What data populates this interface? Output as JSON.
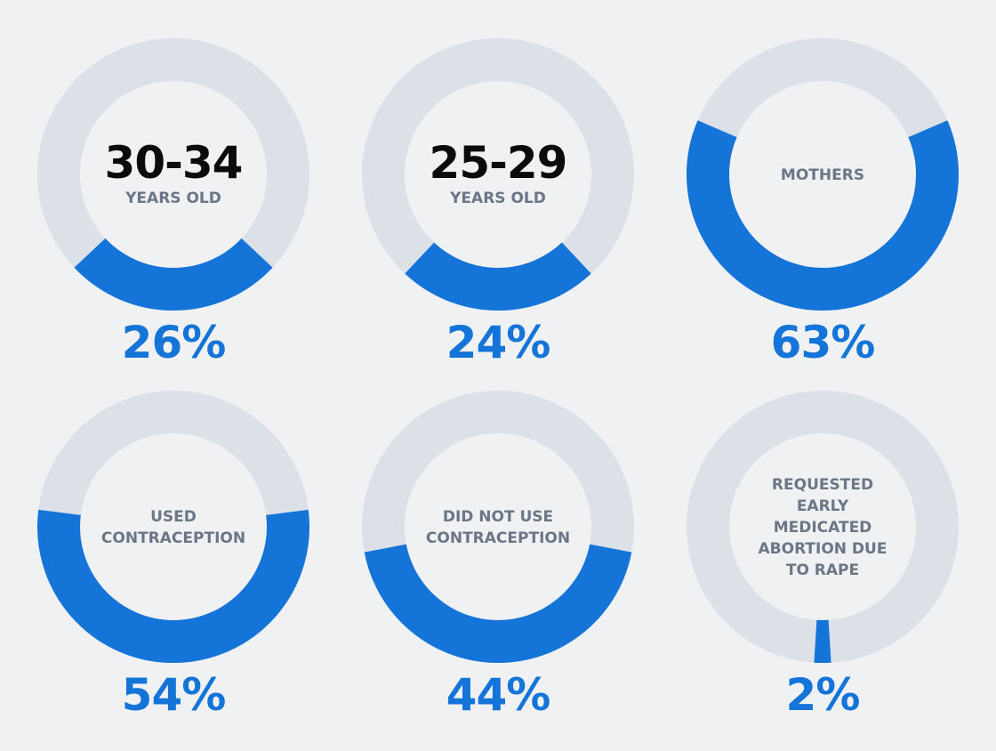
{
  "colors": {
    "background": "#f0f1f3",
    "track": "#dce1e8",
    "accent": "#1474d8",
    "heading": "#0b0b0b",
    "label": "#6b7686"
  },
  "chart_data": [
    {
      "type": "pie",
      "style": "donut",
      "big_label": "30-34",
      "label_lines": [
        "YEARS OLD"
      ],
      "value_label": "26%",
      "value": 26,
      "fill_anchor": "bottom"
    },
    {
      "type": "pie",
      "style": "donut",
      "big_label": "25-29",
      "label_lines": [
        "YEARS OLD"
      ],
      "value_label": "24%",
      "value": 24,
      "fill_anchor": "bottom"
    },
    {
      "type": "pie",
      "style": "donut",
      "big_label": "",
      "label_lines": [
        "MOTHERS"
      ],
      "value_label": "63%",
      "value": 63,
      "fill_anchor": "bottom"
    },
    {
      "type": "pie",
      "style": "donut",
      "big_label": "",
      "label_lines": [
        "USED",
        "CONTRACEPTION"
      ],
      "value_label": "54%",
      "value": 54,
      "fill_anchor": "bottom"
    },
    {
      "type": "pie",
      "style": "donut",
      "big_label": "",
      "label_lines": [
        "DID NOT USE",
        "CONTRACEPTION"
      ],
      "value_label": "44%",
      "value": 44,
      "fill_anchor": "bottom"
    },
    {
      "type": "pie",
      "style": "donut",
      "big_label": "",
      "label_lines": [
        "REQUESTED",
        "EARLY",
        "MEDICATED",
        "ABORTION DUE",
        "TO RAPE"
      ],
      "value_label": "2%",
      "value": 2,
      "fill_anchor": "bottom"
    }
  ]
}
